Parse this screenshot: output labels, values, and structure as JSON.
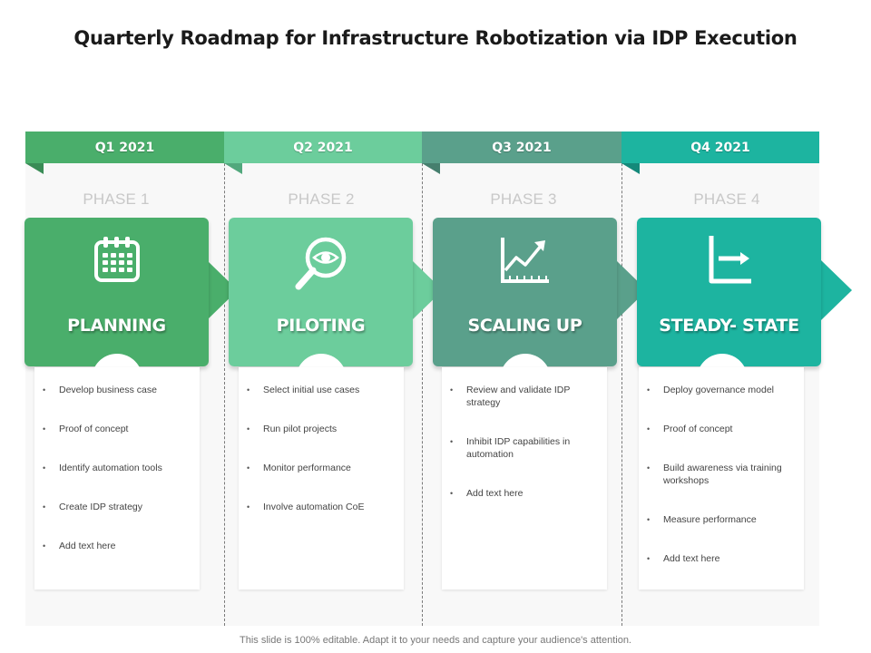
{
  "title": "Quarterly Roadmap for Infrastructure Robotization via IDP Execution",
  "colors": {
    "q1": "#4aae6b",
    "q2": "#6ccd9c",
    "q3": "#5aa08b",
    "q4": "#1db4a0"
  },
  "quarters": [
    {
      "label": "Q1 2021",
      "phase": "PHASE 1",
      "name": "PLANNING",
      "icon": "calendar-icon",
      "items": [
        "Develop business case",
        "Proof of concept",
        "Identify automation  tools",
        "Create IDP strategy",
        "Add text here"
      ]
    },
    {
      "label": "Q2 2021",
      "phase": "PHASE 2",
      "name": "PILOTING",
      "icon": "magnifier-eye-icon",
      "items": [
        "Select initial  use cases",
        "Run pilot  projects",
        "Monitor performance",
        "Involve automation  CoE"
      ]
    },
    {
      "label": "Q3 2021",
      "phase": "PHASE 3",
      "name": "SCALING UP",
      "icon": "growth-chart-icon",
      "items": [
        "Review and validate  IDP strategy",
        "Inhibit  IDP capabilities  in automation",
        "Add text here"
      ]
    },
    {
      "label": "Q4 2021",
      "phase": "PHASE 4",
      "name": "STEADY- STATE",
      "icon": "axis-arrow-icon",
      "items": [
        "Deploy governance model",
        "Proof of concept",
        "Build awareness via training workshops",
        "Measure performance",
        "Add text here"
      ]
    }
  ],
  "footer": "This slide is 100% editable. Adapt it to your needs and capture your audience's attention."
}
